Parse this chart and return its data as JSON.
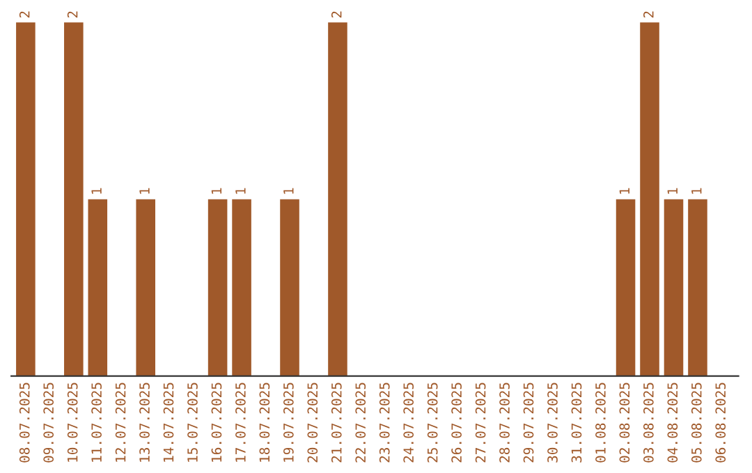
{
  "chart_data": {
    "type": "bar",
    "categories": [
      "08.07.2025",
      "09.07.2025",
      "10.07.2025",
      "11.07.2025",
      "12.07.2025",
      "13.07.2025",
      "14.07.2025",
      "15.07.2025",
      "16.07.2025",
      "17.07.2025",
      "18.07.2025",
      "19.07.2025",
      "20.07.2025",
      "21.07.2025",
      "22.07.2025",
      "23.07.2025",
      "24.07.2025",
      "25.07.2025",
      "26.07.2025",
      "27.07.2025",
      "28.07.2025",
      "29.07.2025",
      "30.07.2025",
      "31.07.2025",
      "01.08.2025",
      "02.08.2025",
      "03.08.2025",
      "04.08.2025",
      "05.08.2025",
      "06.08.2025"
    ],
    "values": [
      2,
      0,
      2,
      1,
      0,
      1,
      0,
      0,
      1,
      1,
      0,
      1,
      0,
      2,
      0,
      0,
      0,
      0,
      0,
      0,
      0,
      0,
      0,
      0,
      0,
      1,
      2,
      1,
      1,
      0
    ],
    "value_labels": [
      "2",
      null,
      "2",
      "1",
      null,
      "1",
      null,
      null,
      "1",
      "1",
      null,
      "1",
      null,
      "2",
      null,
      null,
      null,
      null,
      null,
      null,
      null,
      null,
      null,
      null,
      null,
      "1",
      "2",
      "1",
      "1",
      null
    ],
    "color": "#a0592a",
    "tick_labels": "x",
    "grid": false,
    "legend": false
  }
}
